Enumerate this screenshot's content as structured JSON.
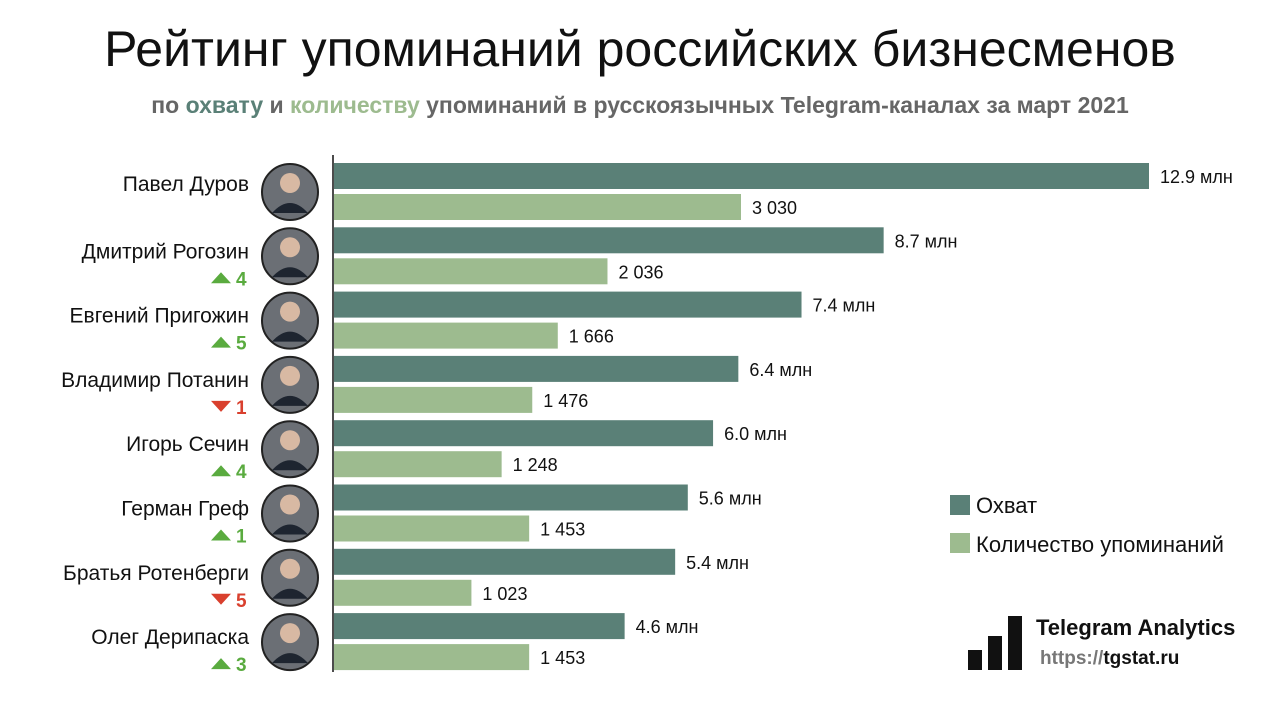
{
  "title": "Рейтинг упоминаний российских бизнесменов",
  "subtitle": {
    "p1": "по ",
    "w1": "охвату",
    "p2": " и ",
    "w2": "количеству",
    "p3": " упоминаний в русскоязычных Telegram-каналах за март 2021"
  },
  "colors": {
    "reach": "#5a8077",
    "count": "#9dbb8f",
    "up": "#5aab3f",
    "down": "#d9402e"
  },
  "logo": {
    "name": "Telegram Analytics",
    "url_prefix": "https://",
    "url_domain": "tgstat.ru"
  },
  "chart_data": {
    "type": "bar",
    "orientation": "horizontal",
    "title": "Рейтинг упоминаний российских бизнесменов",
    "categories": [
      "Павел Дуров",
      "Дмитрий Рогозин",
      "Евгений Пригожин",
      "Владимир Потанин",
      "Игорь Сечин",
      "Герман Греф",
      "Братья Ротенберги",
      "Олег Дерипаска"
    ],
    "rank_change": [
      null,
      {
        "dir": "up",
        "n": "4"
      },
      {
        "dir": "up",
        "n": "5"
      },
      {
        "dir": "down",
        "n": "1"
      },
      {
        "dir": "up",
        "n": "4"
      },
      {
        "dir": "up",
        "n": "1"
      },
      {
        "dir": "down",
        "n": "5"
      },
      {
        "dir": "up",
        "n": "3"
      }
    ],
    "series": [
      {
        "name": "Охват",
        "unit": "млн",
        "values": [
          12.9,
          8.7,
          7.4,
          6.4,
          6.0,
          5.6,
          5.4,
          4.6
        ],
        "labels": [
          "12.9 млн",
          "8.7 млн",
          "7.4 млн",
          "6.4 млн",
          "6.0 млн",
          "5.6 млн",
          "5.4 млн",
          "4.6 млн"
        ]
      },
      {
        "name": "Количество упоминаний",
        "values": [
          3030,
          2036,
          1666,
          1476,
          1248,
          1453,
          1023,
          1453
        ],
        "labels": [
          "3 030",
          "2 036",
          "1 666",
          "1 476",
          "1 248",
          "1 453",
          "1 023",
          "1 453"
        ]
      }
    ],
    "legend": "right"
  }
}
